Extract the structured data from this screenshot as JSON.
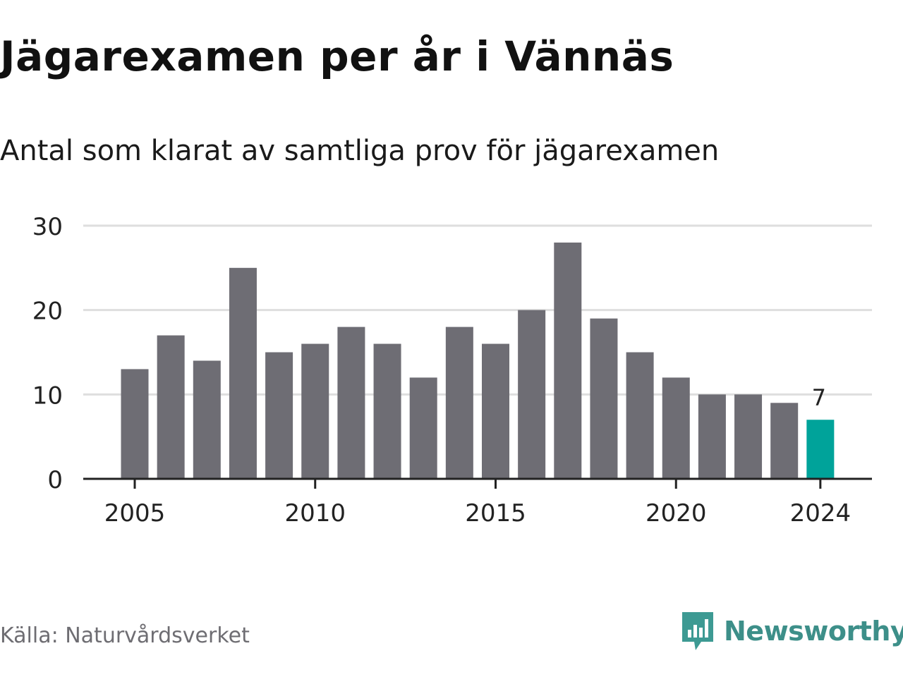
{
  "title": "Jägarexamen per år i Vännäs",
  "subtitle": "Antal som klarat av samtliga prov för jägarexamen",
  "source": "Källa: Naturvårdsverket",
  "brand": {
    "name": "Newsworthy",
    "icon": "newsworthy-logo-icon",
    "color": "#3d9a93"
  },
  "colors": {
    "bar": "#6e6d74",
    "highlight": "#00a39a",
    "grid": "#dedede",
    "axis": "#222222"
  },
  "chart_data": {
    "type": "bar",
    "categories": [
      "2005",
      "2006",
      "2007",
      "2008",
      "2009",
      "2010",
      "2011",
      "2012",
      "2013",
      "2014",
      "2015",
      "2016",
      "2017",
      "2018",
      "2019",
      "2020",
      "2021",
      "2022",
      "2023",
      "2024"
    ],
    "values": [
      13,
      17,
      14,
      25,
      15,
      16,
      18,
      16,
      12,
      18,
      16,
      20,
      28,
      19,
      15,
      12,
      10,
      10,
      9,
      7
    ],
    "x_tick_labels": [
      "2005",
      "2010",
      "2015",
      "2020",
      "2024"
    ],
    "y_ticks": [
      0,
      10,
      20,
      30
    ],
    "ylim": [
      0,
      30
    ],
    "highlight": {
      "category": "2024",
      "label": "7"
    },
    "grid": true,
    "xlabel": "",
    "ylabel": ""
  }
}
